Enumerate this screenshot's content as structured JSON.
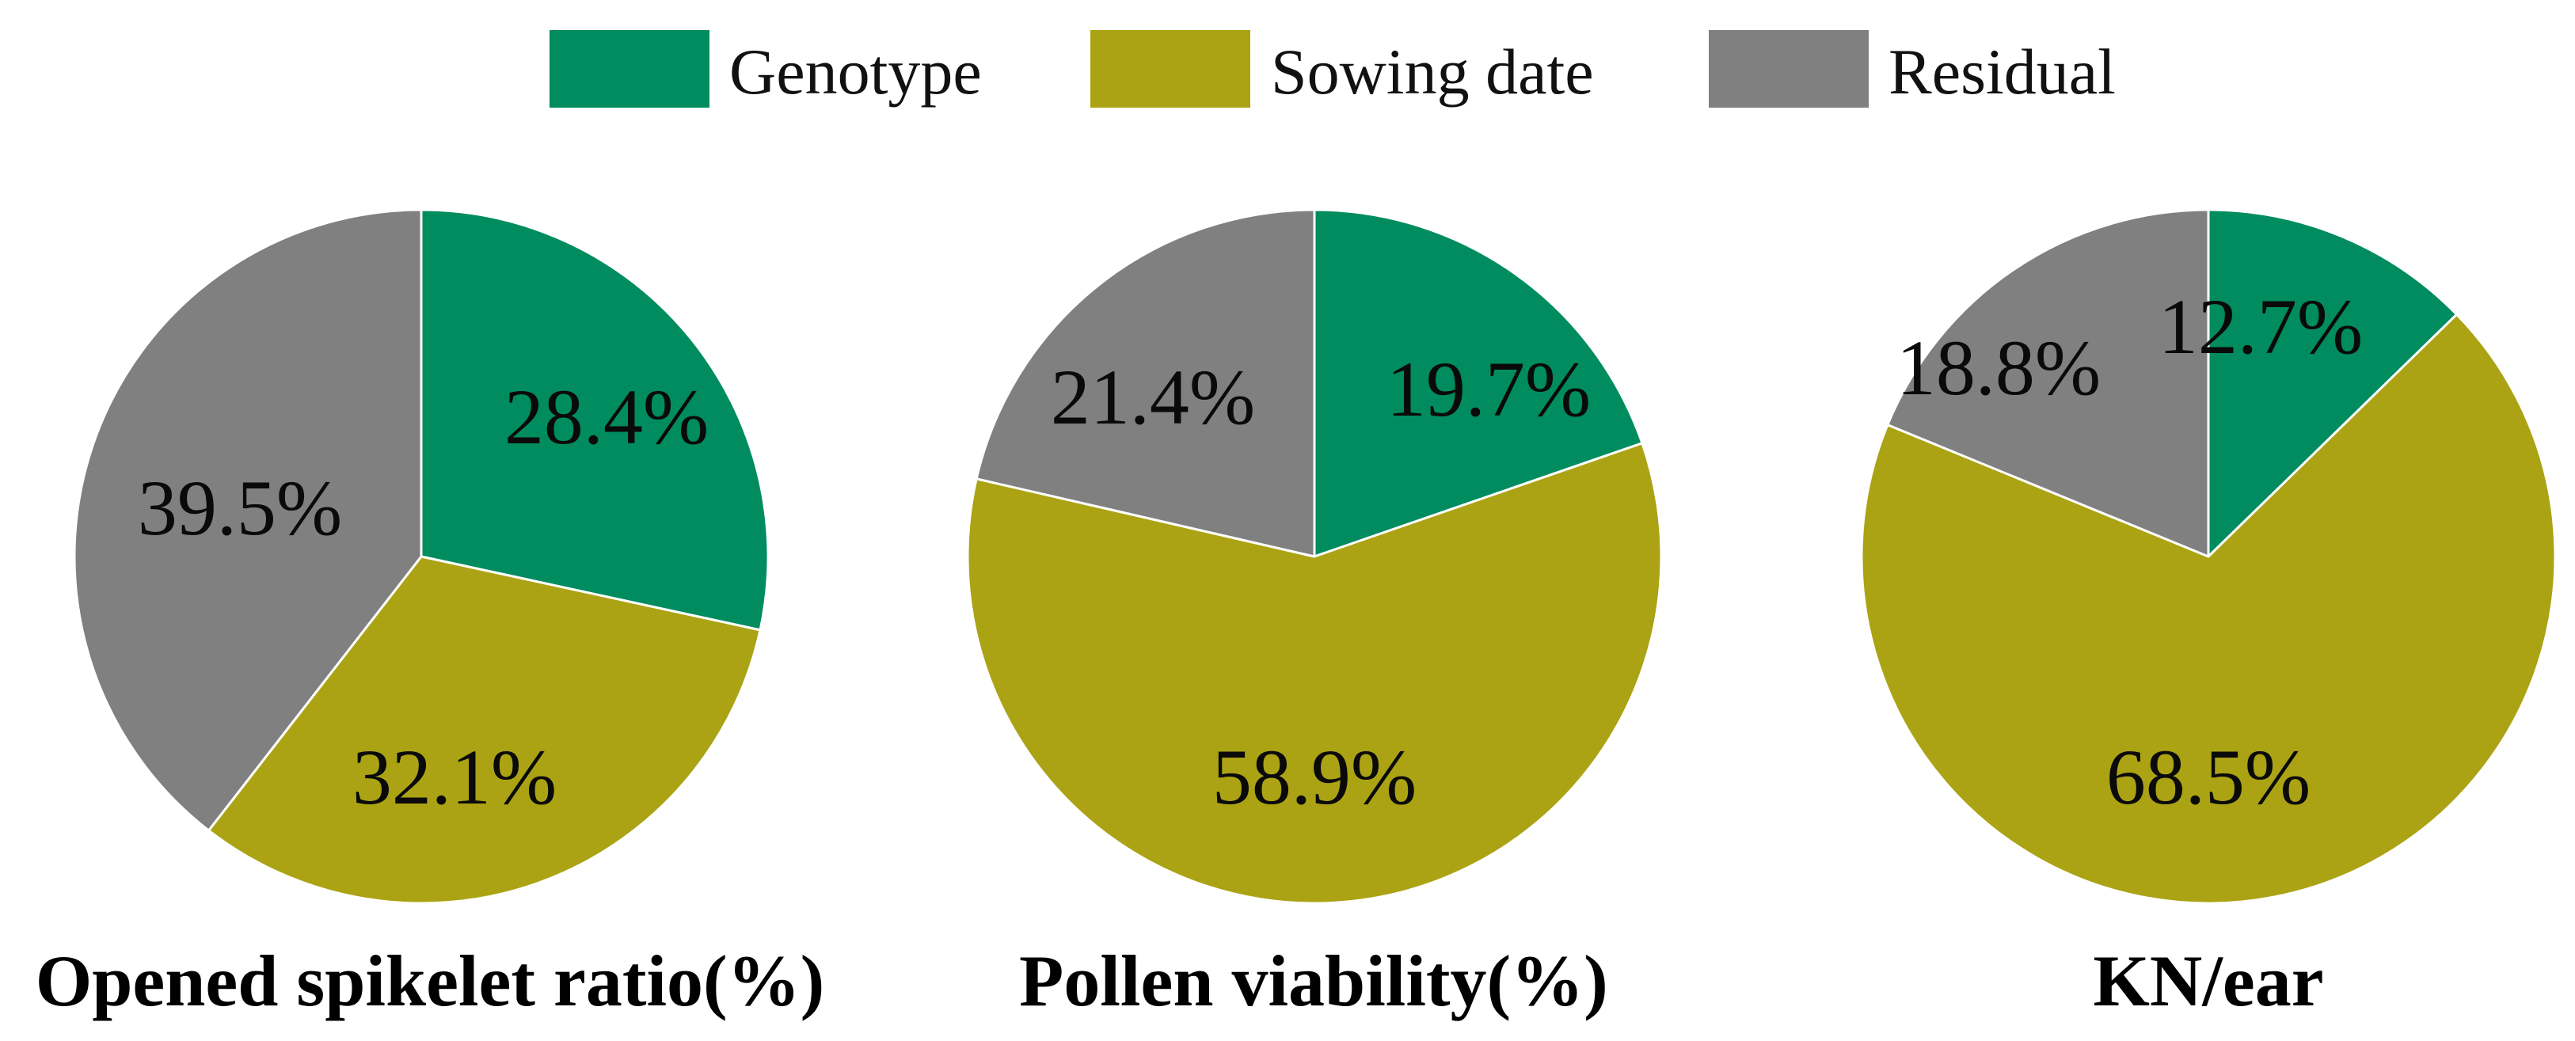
{
  "chart_data": {
    "type": "pie",
    "legend": {
      "placement": "top-center",
      "entries": [
        {
          "name": "Genotype",
          "color": "#008c5e"
        },
        {
          "name": "Sowing date",
          "color": "#aba314"
        },
        {
          "name": "Residual",
          "color": "#808080"
        }
      ]
    },
    "start_angle_deg": 90,
    "direction": "clockwise",
    "charts": [
      {
        "title": "Opened spikelet ratio(%)",
        "slices": [
          {
            "name": "Genotype",
            "value": 28.4,
            "label": "28.4%"
          },
          {
            "name": "Sowing date",
            "value": 32.1,
            "label": "32.1%"
          },
          {
            "name": "Residual",
            "value": 39.5,
            "label": "39.5%"
          }
        ]
      },
      {
        "title": "Pollen viability(%)",
        "slices": [
          {
            "name": "Genotype",
            "value": 19.7,
            "label": "19.7%"
          },
          {
            "name": "Sowing date",
            "value": 58.9,
            "label": "58.9%"
          },
          {
            "name": "Residual",
            "value": 21.4,
            "label": "21.4%"
          }
        ]
      },
      {
        "title": "KN/ear",
        "slices": [
          {
            "name": "Genotype",
            "value": 12.7,
            "label": "12.7%"
          },
          {
            "name": "Sowing date",
            "value": 68.5,
            "label": "68.5%"
          },
          {
            "name": "Residual",
            "value": 18.8,
            "label": "18.8%"
          }
        ]
      }
    ]
  }
}
